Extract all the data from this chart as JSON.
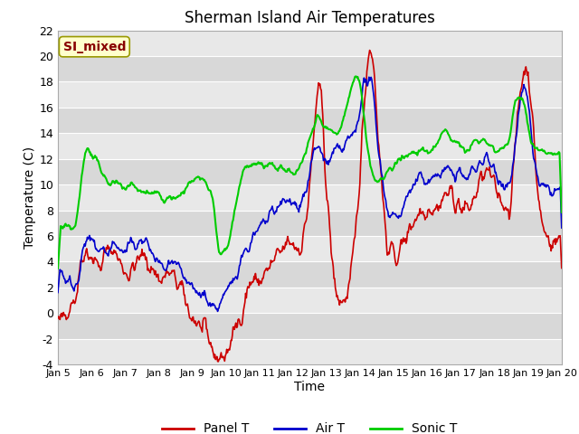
{
  "title": "Sherman Island Air Temperatures",
  "xlabel": "Time",
  "ylabel": "Temperature (C)",
  "ylim": [
    -4,
    22
  ],
  "xlim": [
    0,
    360
  ],
  "xtick_labels": [
    "Jan 5",
    "Jan 6",
    "Jan 7",
    "Jan 8",
    "Jan 9",
    "Jan 10",
    "Jan 11",
    "Jan 12",
    "Jan 13",
    "Jan 14",
    "Jan 15",
    "Jan 16",
    "Jan 17",
    "Jan 18",
    "Jan 19",
    "Jan 20"
  ],
  "ytick_values": [
    -4,
    -2,
    0,
    2,
    4,
    6,
    8,
    10,
    12,
    14,
    16,
    18,
    20,
    22
  ],
  "colors": {
    "panel_t": "#cc0000",
    "air_t": "#0000cc",
    "sonic_t": "#00cc00",
    "bg_dark": "#d8d8d8",
    "bg_light": "#e8e8e8",
    "grid": "#ffffff"
  },
  "annotation_text": "SI_mixed",
  "annotation_bg": "#ffffcc",
  "annotation_border": "#999900",
  "annotation_text_color": "#880000",
  "legend_labels": [
    "Panel T",
    "Air T",
    "Sonic T"
  ],
  "figsize": [
    6.4,
    4.8
  ],
  "dpi": 100
}
